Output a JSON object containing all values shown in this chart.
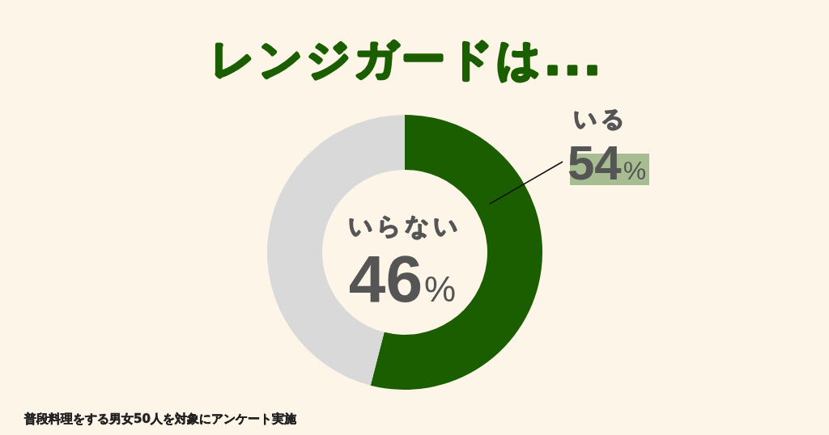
{
  "chart_data": {
    "type": "donut",
    "title": "レンジガードは...",
    "categories": [
      "いる",
      "いらない"
    ],
    "values": [
      54,
      46
    ],
    "colors": [
      "#1b5e00",
      "#d9d9d9"
    ],
    "value_labels": [
      "54%",
      "46%"
    ],
    "annotations": [
      "普段料理をする男女50人を対象にアンケート実施"
    ]
  }
}
